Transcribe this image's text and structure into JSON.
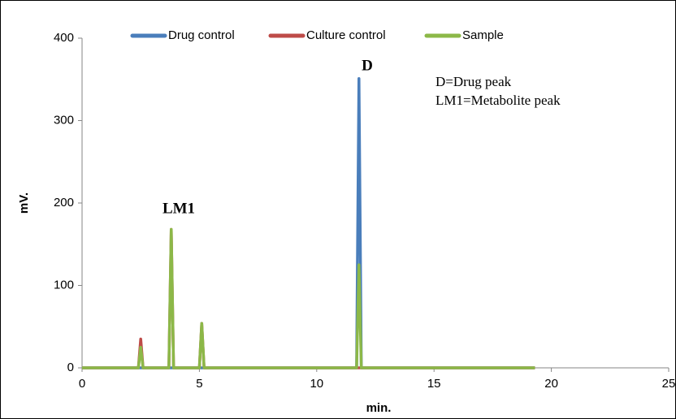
{
  "chart_data": {
    "type": "line",
    "x": [
      0,
      2.4,
      2.5,
      2.6,
      3.7,
      3.8,
      3.9,
      5.0,
      5.1,
      5.2,
      11.7,
      11.8,
      11.9,
      19.3
    ],
    "series": [
      {
        "name": "Drug control",
        "color": "#4a7ebb",
        "values": [
          0,
          0,
          0,
          0,
          0,
          0,
          0,
          0,
          0,
          0,
          0,
          351,
          0,
          0
        ]
      },
      {
        "name": "Culture control",
        "color": "#be4b48",
        "values": [
          0,
          0,
          35,
          0,
          0,
          168,
          0,
          0,
          54,
          0,
          0,
          0,
          0,
          0
        ]
      },
      {
        "name": "Sample",
        "color": "#8cb848",
        "values": [
          0,
          0,
          25,
          0,
          0,
          168,
          0,
          0,
          54,
          0,
          0,
          125,
          0,
          0
        ]
      }
    ],
    "xlabel": "min.",
    "ylabel": "mV.",
    "xlim": [
      0,
      25
    ],
    "xticks": [
      0,
      5,
      10,
      15,
      20,
      25
    ],
    "ylim": [
      0,
      400
    ],
    "yticks": [
      0,
      100,
      200,
      300,
      400
    ],
    "grid": false,
    "legend": "top",
    "annotations": [
      "D",
      "LM1",
      "D=Drug peak",
      "LM1=Metabolite peak"
    ]
  }
}
